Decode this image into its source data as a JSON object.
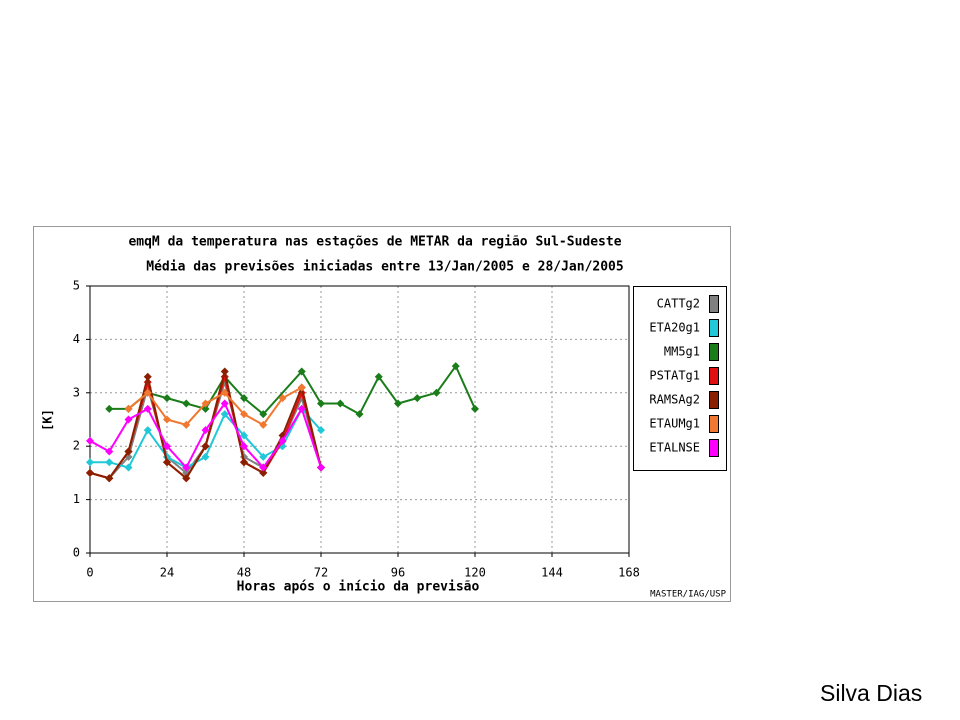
{
  "chart_data": {
    "type": "line",
    "title": "emqM da temperatura nas estações de METAR da região Sul-Sudeste",
    "subtitle": "Média das previsões iniciadas entre 13/Jan/2005 e 28/Jan/2005",
    "x_label": "Horas após o início da previsão",
    "y_label": "[K]",
    "source": "MASTER/IAG/USP",
    "xlim": [
      0,
      168
    ],
    "xticks": [
      0,
      24,
      48,
      72,
      96,
      120,
      144,
      168
    ],
    "ylim": [
      0,
      5
    ],
    "yticks": [
      0,
      1,
      2,
      3,
      4,
      5
    ],
    "grid": true,
    "legend": "right",
    "series": [
      {
        "name": "CATTg2",
        "color": "#808080",
        "x": [
          0,
          6,
          12,
          18,
          24,
          30,
          36,
          42,
          48,
          54,
          60,
          66,
          72
        ],
        "values": [
          1.5,
          1.4,
          1.8,
          3.1,
          1.8,
          1.5,
          2.0,
          3.2,
          1.8,
          1.6,
          2.1,
          2.9,
          1.6
        ]
      },
      {
        "name": "ETA20g1",
        "color": "#20c8d8",
        "x": [
          0,
          6,
          12,
          18,
          24,
          30,
          36,
          42,
          48,
          54,
          60,
          66,
          72
        ],
        "values": [
          1.7,
          1.7,
          1.6,
          2.3,
          1.8,
          1.6,
          1.8,
          2.6,
          2.2,
          1.8,
          2.0,
          2.7,
          2.3
        ]
      },
      {
        "name": "MM5g1",
        "color": "#1a7d1a",
        "x": [
          6,
          12,
          18,
          24,
          30,
          36,
          42,
          48,
          54,
          66,
          72,
          78,
          84,
          90,
          96,
          102,
          108,
          114,
          120
        ],
        "values": [
          2.7,
          2.7,
          3.0,
          2.9,
          2.8,
          2.7,
          3.3,
          2.9,
          2.6,
          3.4,
          2.8,
          2.8,
          2.6,
          3.3,
          2.8,
          2.9,
          3.0,
          3.5,
          2.7
        ]
      },
      {
        "name": "PSTATg1",
        "color": "#e01010",
        "x": [
          0,
          6,
          12,
          18,
          24,
          30,
          36,
          42,
          48,
          54,
          60,
          66,
          72
        ],
        "values": [
          1.5,
          1.4,
          1.9,
          3.2,
          1.7,
          1.4,
          2.0,
          3.3,
          1.7,
          1.5,
          2.1,
          3.0,
          1.6
        ]
      },
      {
        "name": "RAMSAg2",
        "color": "#8b2000",
        "x": [
          0,
          6,
          12,
          18,
          24,
          30,
          36,
          42,
          48,
          54,
          60,
          66,
          72
        ],
        "values": [
          1.5,
          1.4,
          1.9,
          3.3,
          1.7,
          1.4,
          2.0,
          3.4,
          1.7,
          1.5,
          2.2,
          3.1,
          1.6
        ]
      },
      {
        "name": "ETAUMg1",
        "color": "#f07830",
        "x": [
          12,
          18,
          24,
          30,
          36,
          42,
          48,
          54,
          60,
          66
        ],
        "values": [
          2.7,
          3.0,
          2.5,
          2.4,
          2.8,
          3.0,
          2.6,
          2.4,
          2.9,
          3.1
        ]
      },
      {
        "name": "ETALNSE",
        "color": "#ff00ff",
        "x": [
          0,
          6,
          12,
          18,
          24,
          30,
          36,
          42,
          48,
          54,
          60,
          66,
          72
        ],
        "values": [
          2.1,
          1.9,
          2.5,
          2.7,
          2.0,
          1.6,
          2.3,
          2.8,
          2.0,
          1.6,
          2.1,
          2.7,
          1.6
        ]
      }
    ]
  },
  "footer": "Silva Dias"
}
